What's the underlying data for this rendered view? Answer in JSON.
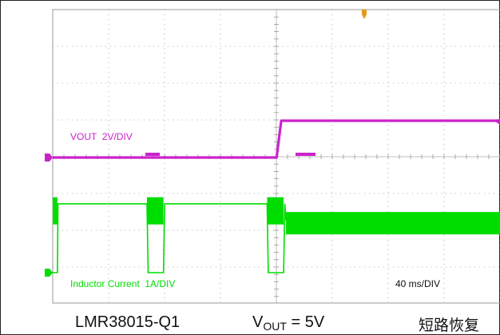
{
  "colors": {
    "vout": "#cc22cc",
    "inductor": "#00dd00",
    "grid": "#999999",
    "trigger": "#e39a1a",
    "frame": "#222222"
  },
  "chart_data": {
    "type": "line",
    "title": "",
    "xlabel": "",
    "ylabel": "",
    "timebase_label": "40 ms/DIV",
    "x_unit": "ms",
    "xlim": [
      0,
      400
    ],
    "grid": true,
    "series": [
      {
        "name": "VOUT  2V/DIV",
        "unit": "V",
        "x": [
          0,
          190,
          194,
          200,
          400
        ],
        "y": [
          0,
          0,
          5,
          5,
          5
        ]
      },
      {
        "name": "Inductor Current  1A/DIV",
        "unit": "A",
        "x": [
          0,
          4,
          4.5,
          80,
          81,
          94,
          95,
          182,
          183,
          196,
          197,
          198,
          400
        ],
        "y": [
          0,
          0,
          2.1,
          2.1,
          0,
          0,
          2.1,
          2.1,
          0,
          0,
          2.1,
          1.6,
          1.6
        ]
      }
    ]
  },
  "captions": {
    "device": "LMR38015-Q1",
    "vout_prefix": "V",
    "vout_sub": "OUT",
    "vout_value": " = 5V",
    "note": "短路恢复"
  }
}
